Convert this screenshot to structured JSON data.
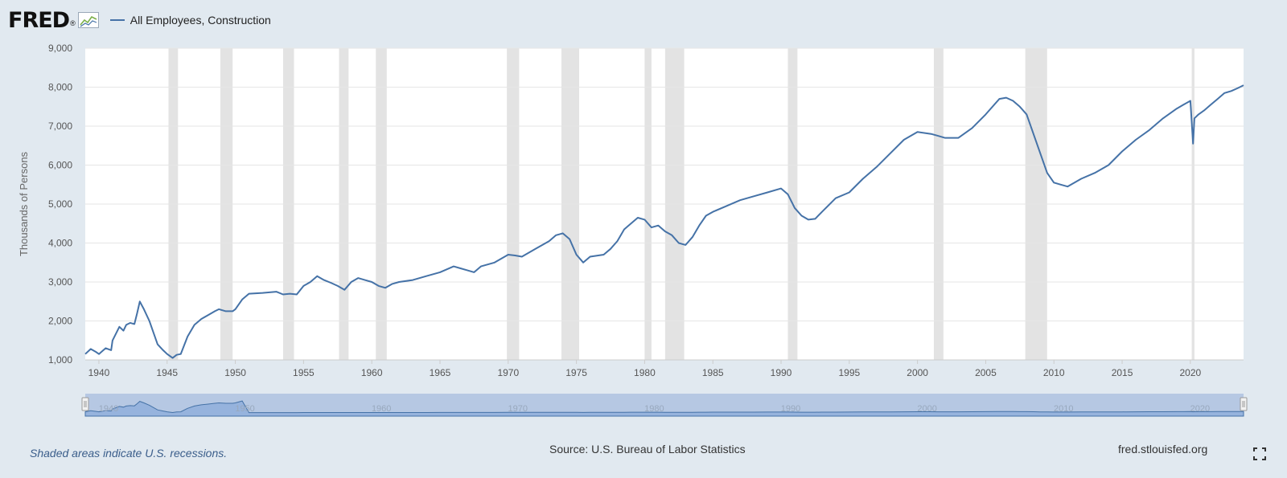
{
  "header": {
    "logo": "FRED",
    "logo_mark": "®",
    "logo_icon": "fred-chart-icon"
  },
  "footer": {
    "recession_note": "Shaded areas indicate U.S. recessions.",
    "source": "Source: U.S. Bureau of Labor Statistics",
    "site": "fred.stlouisfed.org",
    "fullscreen_icon": "fullscreen-icon"
  },
  "colors": {
    "line": "#4572a7",
    "recession": "#e3e3e3",
    "background": "#e1e9f0",
    "plot": "#ffffff",
    "navigator": "#8eaedb"
  },
  "chart_data": {
    "type": "line",
    "title": "",
    "ylabel": "Thousands of Persons",
    "xlabel": "",
    "ylim": [
      1000,
      9000
    ],
    "xlim": [
      1939.0,
      2023.9
    ],
    "yticks": [
      1000,
      2000,
      3000,
      4000,
      5000,
      6000,
      7000,
      8000,
      9000
    ],
    "ytick_labels": [
      "1,000",
      "2,000",
      "3,000",
      "4,000",
      "5,000",
      "6,000",
      "7,000",
      "8,000",
      "9,000"
    ],
    "xticks": [
      1940,
      1945,
      1950,
      1955,
      1960,
      1965,
      1970,
      1975,
      1980,
      1985,
      1990,
      1995,
      2000,
      2005,
      2010,
      2015,
      2020
    ],
    "xtick_labels": [
      "1940",
      "1945",
      "1950",
      "1955",
      "1960",
      "1965",
      "1970",
      "1975",
      "1980",
      "1985",
      "1990",
      "1995",
      "2000",
      "2005",
      "2010",
      "2015",
      "2020"
    ],
    "grid": true,
    "legend_position": "top-left",
    "series": [
      {
        "name": "All Employees, Construction",
        "x": [
          1939.0,
          1939.4,
          1939.8,
          1940.0,
          1940.5,
          1940.9,
          1941.0,
          1941.5,
          1941.8,
          1942.0,
          1942.3,
          1942.6,
          1942.8,
          1943.0,
          1943.3,
          1943.7,
          1944.0,
          1944.3,
          1944.7,
          1945.0,
          1945.4,
          1945.7,
          1946.0,
          1946.5,
          1947.0,
          1947.5,
          1948.0,
          1948.5,
          1948.8,
          1949.3,
          1949.8,
          1950.0,
          1950.5,
          1951.0,
          1952.0,
          1953.0,
          1953.5,
          1954.0,
          1954.5,
          1955.0,
          1955.5,
          1956.0,
          1956.5,
          1957.0,
          1957.5,
          1958.0,
          1958.5,
          1959.0,
          1959.5,
          1960.0,
          1960.5,
          1961.0,
          1961.5,
          1962.0,
          1963.0,
          1964.0,
          1965.0,
          1966.0,
          1966.5,
          1967.0,
          1967.5,
          1968.0,
          1969.0,
          1970.0,
          1970.5,
          1971.0,
          1972.0,
          1973.0,
          1973.5,
          1974.0,
          1974.5,
          1975.0,
          1975.5,
          1976.0,
          1977.0,
          1977.5,
          1978.0,
          1978.5,
          1979.0,
          1979.5,
          1980.0,
          1980.5,
          1981.0,
          1981.5,
          1982.0,
          1982.5,
          1983.0,
          1983.5,
          1984.0,
          1984.5,
          1985.0,
          1986.0,
          1987.0,
          1988.0,
          1989.0,
          1990.0,
          1990.5,
          1991.0,
          1991.5,
          1992.0,
          1992.5,
          1993.0,
          1994.0,
          1995.0,
          1996.0,
          1997.0,
          1998.0,
          1999.0,
          2000.0,
          2001.0,
          2001.5,
          2002.0,
          2003.0,
          2004.0,
          2005.0,
          2006.0,
          2006.5,
          2007.0,
          2007.5,
          2008.0,
          2008.5,
          2009.0,
          2009.5,
          2010.0,
          2010.5,
          2011.0,
          2012.0,
          2013.0,
          2014.0,
          2015.0,
          2016.0,
          2017.0,
          2018.0,
          2019.0,
          2019.5,
          2020.0,
          2020.2,
          2020.3,
          2020.6,
          2021.0,
          2021.5,
          2022.0,
          2022.5,
          2023.0,
          2023.5,
          2023.9
        ],
        "y": [
          1150,
          1280,
          1200,
          1150,
          1300,
          1250,
          1500,
          1850,
          1750,
          1900,
          1950,
          1920,
          2200,
          2500,
          2300,
          2000,
          1700,
          1400,
          1250,
          1150,
          1050,
          1130,
          1150,
          1600,
          1900,
          2050,
          2150,
          2250,
          2300,
          2250,
          2250,
          2300,
          2550,
          2700,
          2720,
          2750,
          2680,
          2700,
          2680,
          2900,
          3000,
          3150,
          3050,
          2980,
          2900,
          2800,
          3000,
          3100,
          3050,
          3000,
          2900,
          2850,
          2950,
          3000,
          3050,
          3150,
          3250,
          3400,
          3350,
          3300,
          3250,
          3400,
          3500,
          3700,
          3680,
          3650,
          3850,
          4050,
          4200,
          4250,
          4100,
          3700,
          3500,
          3650,
          3700,
          3850,
          4050,
          4350,
          4500,
          4650,
          4600,
          4400,
          4450,
          4300,
          4200,
          4000,
          3950,
          4150,
          4450,
          4700,
          4800,
          4950,
          5100,
          5200,
          5300,
          5400,
          5250,
          4900,
          4700,
          4600,
          4620,
          4800,
          5150,
          5300,
          5650,
          5950,
          6300,
          6650,
          6850,
          6800,
          6750,
          6700,
          6700,
          6950,
          7300,
          7700,
          7730,
          7650,
          7500,
          7300,
          6800,
          6300,
          5800,
          5550,
          5500,
          5450,
          5650,
          5800,
          6000,
          6350,
          6650,
          6900,
          7200,
          7450,
          7550,
          7650,
          6550,
          7200,
          7300,
          7400,
          7550,
          7700,
          7850,
          7900,
          7980,
          8050
        ]
      }
    ],
    "recessions": [
      [
        1945.1,
        1945.8
      ],
      [
        1948.9,
        1949.8
      ],
      [
        1953.5,
        1954.3
      ],
      [
        1957.6,
        1958.3
      ],
      [
        1960.3,
        1961.1
      ],
      [
        1969.9,
        1970.8
      ],
      [
        1973.9,
        1975.2
      ],
      [
        1980.0,
        1980.5
      ],
      [
        1981.5,
        1982.9
      ],
      [
        1990.5,
        1991.2
      ],
      [
        2001.2,
        2001.9
      ],
      [
        2007.9,
        2009.5
      ],
      [
        2020.1,
        2020.3
      ]
    ],
    "navigator": {
      "range": [
        1939.0,
        2023.9
      ],
      "tick_labels": [
        "1940",
        "1950",
        "1960",
        "1970",
        "1980",
        "1990",
        "2000",
        "2010",
        "2020"
      ]
    }
  }
}
